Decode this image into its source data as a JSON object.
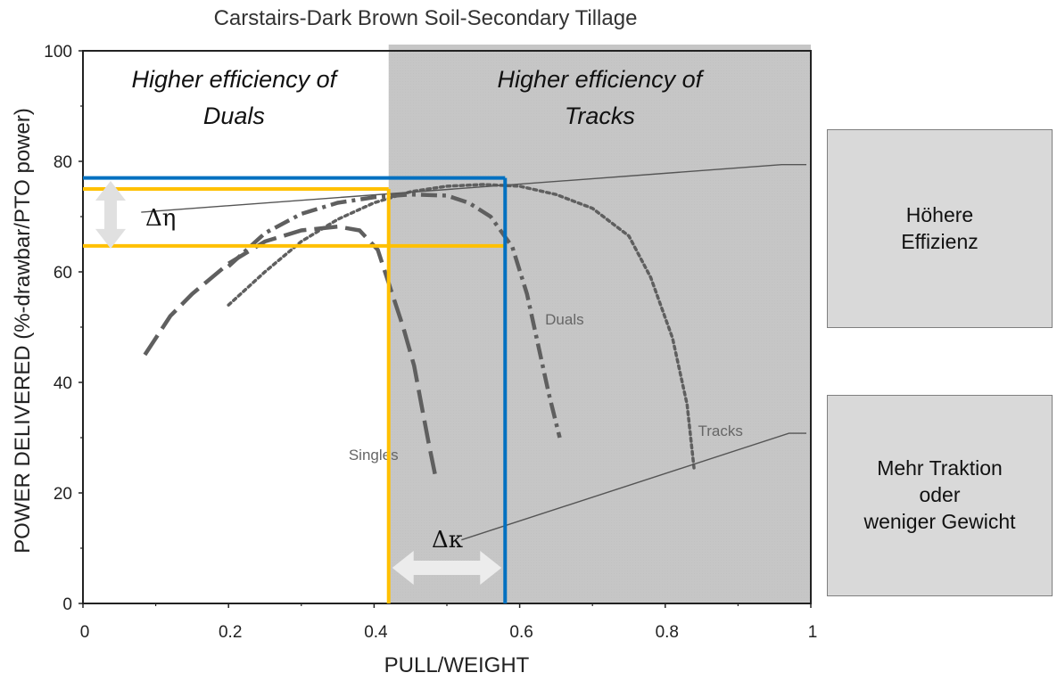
{
  "chart_data": {
    "type": "line",
    "title": "Carstairs-Dark Brown Soil-Secondary Tillage",
    "xlabel": "PULL/WEIGHT",
    "ylabel": "POWER DELIVERED (%-drawbar/PTO power)",
    "xlim": [
      0,
      1
    ],
    "ylim": [
      0,
      100
    ],
    "xticks": [
      0,
      0.2,
      0.4,
      0.6,
      0.8,
      1
    ],
    "xtick_labels": [
      "0",
      "0.2",
      "0.4",
      "0.6",
      "0.8",
      "1"
    ],
    "yticks": [
      0,
      20,
      40,
      60,
      80,
      100
    ],
    "ytick_labels": [
      "0",
      "20",
      "40",
      "60",
      "80",
      "100"
    ],
    "grid": false,
    "series": [
      {
        "name": "Singles",
        "style": "dashed",
        "x": [
          0.085,
          0.12,
          0.15,
          0.2,
          0.25,
          0.3,
          0.35,
          0.38,
          0.405,
          0.42,
          0.44,
          0.455,
          0.465,
          0.475,
          0.485
        ],
        "y": [
          45,
          52,
          56,
          61.5,
          65.5,
          67.5,
          68.2,
          67.5,
          64,
          58,
          50,
          43,
          36,
          29,
          22.5
        ]
      },
      {
        "name": "Duals",
        "style": "dash-dot",
        "x": [
          0.2,
          0.25,
          0.3,
          0.35,
          0.4,
          0.45,
          0.5,
          0.53,
          0.56,
          0.59,
          0.61,
          0.625,
          0.64,
          0.655
        ],
        "y": [
          61,
          67,
          70.5,
          72.5,
          73.5,
          74,
          73.8,
          72.5,
          70,
          64.5,
          56,
          47,
          38,
          30
        ]
      },
      {
        "name": "Tracks",
        "style": "dotted",
        "x": [
          0.2,
          0.25,
          0.3,
          0.35,
          0.4,
          0.45,
          0.5,
          0.55,
          0.6,
          0.65,
          0.7,
          0.75,
          0.78,
          0.81,
          0.83,
          0.84
        ],
        "y": [
          54,
          60,
          65.5,
          69.5,
          72.5,
          74.5,
          75.5,
          75.8,
          75.5,
          74,
          71.5,
          66.5,
          59,
          48,
          36,
          24
        ]
      }
    ],
    "series_labels": [
      {
        "text": "Singles",
        "x": 0.365,
        "y": 26
      },
      {
        "text": "Duals",
        "x": 0.635,
        "y": 50.5
      },
      {
        "text": "Tracks",
        "x": 0.845,
        "y": 30.3
      }
    ],
    "regions": [
      {
        "label_line1": "Higher efficiency of",
        "label_line2": "Duals",
        "x_from": 0,
        "x_to": 0.42,
        "color": "#ffffff"
      },
      {
        "label_line1": "Higher efficiency of",
        "label_line2": "Tracks",
        "x_from": 0.42,
        "x_to": 1,
        "color": "#c6c6c6"
      }
    ],
    "reference_lines": {
      "orange_color": "#ffc000",
      "blue_color": "#0070c0",
      "orange_x": 0.42,
      "orange_y_high": 75,
      "orange_y_low": 64.7,
      "blue_x": 0.58,
      "blue_y": 77
    },
    "annotations": [
      {
        "text": "Δη"
      },
      {
        "text": "Δκ"
      }
    ]
  },
  "callouts": {
    "efficiency": "Höhere\nEffizienz",
    "traction": "Mehr Traktion\noder\nweniger Gewicht"
  }
}
